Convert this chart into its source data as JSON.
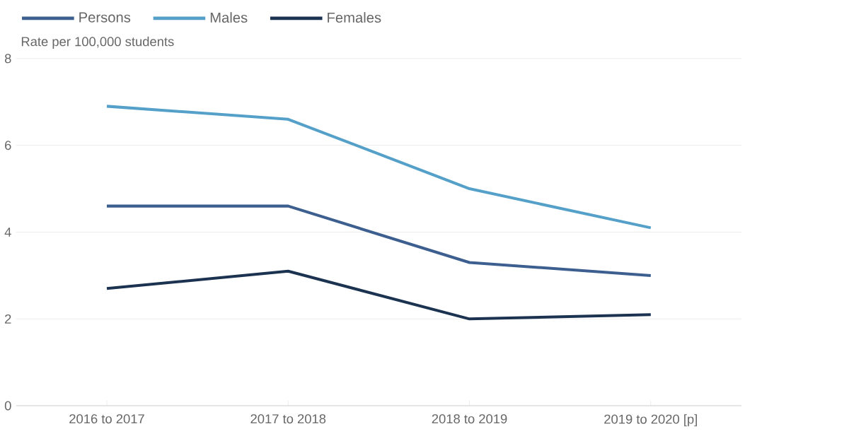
{
  "chart_data": {
    "type": "line",
    "ylabel": "Rate per 100,000 students",
    "categories": [
      "2016 to 2017",
      "2017 to 2018",
      "2018 to 2019",
      "2019 to 2020 [p]"
    ],
    "series": [
      {
        "name": "Persons",
        "color": "#3c5f8f",
        "values": [
          4.6,
          4.6,
          3.3,
          3.0
        ]
      },
      {
        "name": "Males",
        "color": "#54a0c9",
        "values": [
          6.9,
          6.6,
          5.0,
          4.1
        ]
      },
      {
        "name": "Females",
        "color": "#1b3350",
        "values": [
          2.7,
          3.1,
          2.0,
          2.1
        ]
      }
    ],
    "ylim": [
      0,
      8
    ],
    "yticks": [
      0,
      2,
      4,
      6,
      8
    ],
    "grid": "y",
    "legend": "top left"
  }
}
